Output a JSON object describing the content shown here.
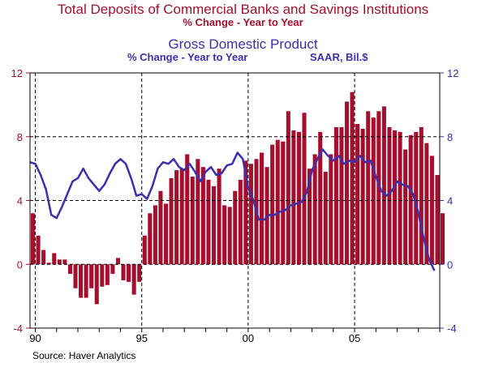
{
  "titles": {
    "deposits_title": "Total Deposits of Commercial Banks and Savings Institutions",
    "deposits_subtitle": "% Change - Year to Year",
    "gdp_title": "Gross Domestic Product",
    "gdp_subtitle": "% Change - Year to Year",
    "gdp_units": "SAAR, Bil.$"
  },
  "source": "Source: Haver Analytics",
  "colors": {
    "deposits": "#a50f2d",
    "gdp": "#3a2fb0",
    "axis_left": "#a50f2d",
    "axis_right": "#3a2fb0"
  },
  "chart_data": {
    "type": "bar",
    "grid": "dashed",
    "x_range": [
      1989.75,
      2009.0
    ],
    "y_range": [
      -4,
      12
    ],
    "left_axis": {
      "ticks": [
        -4,
        0,
        4,
        8,
        12
      ],
      "labels": [
        "-4",
        "0",
        "4",
        "8",
        "12"
      ]
    },
    "right_axis": {
      "ticks": [
        -4,
        0,
        4,
        8,
        12
      ],
      "labels": [
        "-4",
        "0",
        "4",
        "8",
        "12"
      ]
    },
    "x_ticks": [
      {
        "x": 1990,
        "label": "90"
      },
      {
        "x": 1995,
        "label": "95"
      },
      {
        "x": 2000,
        "label": "00"
      },
      {
        "x": 2005,
        "label": "05"
      }
    ],
    "bar_series": {
      "name": "Total Deposits",
      "start": 1989.75,
      "step": 0.25,
      "values": [
        3.2,
        1.8,
        0.9,
        0.1,
        0.7,
        0.3,
        0.3,
        -0.6,
        -1.5,
        -2.1,
        -2.1,
        -1.5,
        -2.5,
        -1.4,
        -1.3,
        -0.6,
        0.4,
        -1.0,
        -1.1,
        -1.9,
        -1.1,
        1.8,
        3.2,
        3.7,
        4.6,
        3.8,
        5.4,
        5.9,
        6.0,
        6.9,
        5.5,
        6.6,
        6.1,
        5.3,
        4.9,
        6.0,
        3.7,
        3.6,
        4.6,
        5.3,
        6.5,
        6.3,
        6.6,
        7.0,
        6.1,
        7.5,
        7.8,
        7.7,
        9.6,
        8.4,
        8.3,
        9.5,
        6.0,
        6.9,
        8.3,
        5.8,
        6.9,
        8.6,
        8.6,
        10.2,
        10.8,
        8.8,
        8.5,
        9.6,
        9.2,
        9.6,
        9.9,
        8.6,
        8.4,
        8.3,
        7.2,
        8.1,
        8.3,
        8.6,
        7.6,
        6.8,
        5.6,
        3.2
      ]
    },
    "line_series": {
      "name": "Gross Domestic Product",
      "x": [
        1989.75,
        1990.0,
        1990.25,
        1990.5,
        1990.75,
        1991.0,
        1991.25,
        1991.5,
        1991.75,
        1992.0,
        1992.25,
        1992.5,
        1992.75,
        1993.0,
        1993.25,
        1993.5,
        1993.75,
        1994.0,
        1994.25,
        1994.5,
        1994.75,
        1995.0,
        1995.25,
        1995.5,
        1995.75,
        1996.0,
        1996.25,
        1996.5,
        1996.75,
        1997.0,
        1997.25,
        1997.5,
        1997.75,
        1998.0,
        1998.25,
        1998.5,
        1998.75,
        1999.0,
        1999.25,
        1999.5,
        1999.75,
        2000.0,
        2000.25,
        2000.5,
        2000.75,
        2001.0,
        2001.25,
        2001.5,
        2001.75,
        2002.0,
        2002.25,
        2002.5,
        2002.75,
        2003.0,
        2003.25,
        2003.5,
        2003.75,
        2004.0,
        2004.25,
        2004.5,
        2004.75,
        2005.0,
        2005.25,
        2005.5,
        2005.75,
        2006.0,
        2006.25,
        2006.5,
        2006.75,
        2007.0,
        2007.25,
        2007.5,
        2007.75,
        2008.0,
        2008.25,
        2008.5,
        2008.75
      ],
      "values": [
        6.4,
        6.3,
        5.6,
        4.7,
        3.1,
        2.9,
        3.6,
        4.4,
        5.2,
        5.4,
        6.0,
        5.4,
        5.0,
        4.6,
        5.0,
        5.7,
        6.3,
        6.6,
        6.3,
        5.4,
        4.3,
        4.4,
        4.1,
        4.9,
        6.0,
        6.4,
        6.3,
        6.6,
        6.1,
        5.9,
        6.3,
        5.8,
        5.2,
        5.8,
        6.1,
        5.6,
        5.7,
        6.2,
        6.3,
        7.0,
        6.6,
        4.8,
        4.0,
        2.8,
        2.8,
        3.1,
        3.1,
        3.3,
        3.4,
        3.7,
        3.8,
        3.9,
        4.5,
        5.9,
        6.6,
        7.2,
        6.8,
        6.5,
        6.8,
        6.3,
        6.5,
        6.4,
        6.8,
        6.4,
        6.5,
        5.5,
        4.6,
        4.3,
        4.6,
        5.2,
        5.0,
        4.9,
        4.4,
        3.2,
        1.6,
        0.3,
        -0.4
      ]
    }
  }
}
